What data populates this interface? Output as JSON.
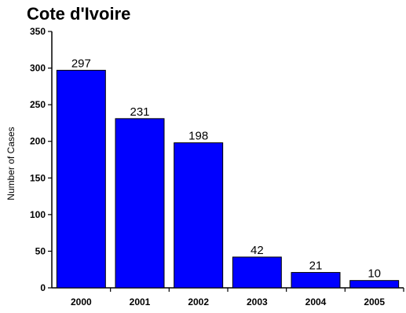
{
  "chart_data": {
    "type": "bar",
    "title": "Cote d'Ivoire",
    "xlabel": "",
    "ylabel": "Number of Cases",
    "categories": [
      "2000",
      "2001",
      "2002",
      "2003",
      "2004",
      "2005"
    ],
    "values": [
      297,
      231,
      198,
      42,
      21,
      10
    ],
    "data_labels": [
      "297",
      "231",
      "198",
      "42",
      "21",
      "10"
    ],
    "ylim": [
      0,
      350
    ],
    "yticks": [
      0,
      50,
      100,
      150,
      200,
      250,
      300,
      350
    ],
    "ytick_labels": [
      "0",
      "50",
      "100",
      "150",
      "200",
      "250",
      "300",
      "350"
    ],
    "grid": false,
    "colors": {
      "bar_fill": "#0000ff",
      "bar_stroke": "#000000"
    }
  }
}
